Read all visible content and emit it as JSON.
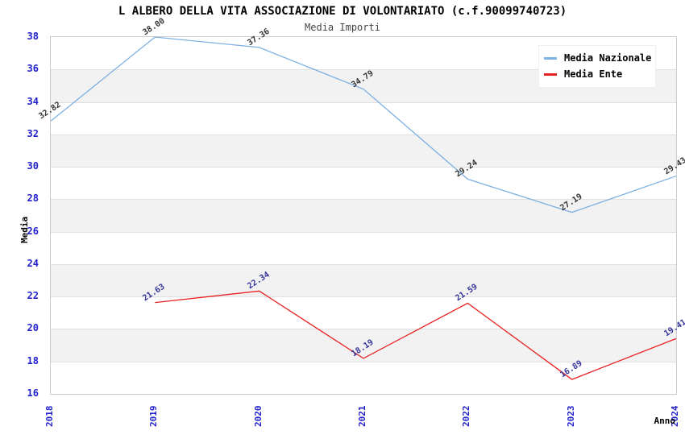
{
  "chart_data": {
    "type": "line",
    "title": "L ALBERO DELLA VITA ASSOCIAZIONE DI VOLONTARIATO (c.f.90099740723)",
    "subtitle": "Media Importi",
    "xlabel": "Anno",
    "ylabel": "Media",
    "categories": [
      "2018",
      "2019",
      "2020",
      "2021",
      "2022",
      "2023",
      "2024"
    ],
    "ylim": [
      16,
      38
    ],
    "ytick_step": 2,
    "grid": "horizontal-alternating-bands",
    "legend_position": "top-right",
    "series": [
      {
        "name": "Media Nazionale",
        "color": "#7db0e3",
        "label_color": "#333333",
        "values": [
          32.82,
          38.0,
          37.36,
          34.79,
          29.24,
          27.19,
          29.43
        ]
      },
      {
        "name": "Media Ente",
        "color": "#e82222",
        "label_color": "#333399",
        "values": [
          null,
          21.63,
          22.34,
          18.19,
          21.59,
          16.89,
          19.41
        ]
      }
    ],
    "colors": {
      "tick_label": "#2222cc",
      "band_gray": "#f2f2f2",
      "grid_line": "#e0e0e0",
      "plot_border": "#cccccc",
      "title": "#000000",
      "subtitle": "#444444"
    }
  }
}
